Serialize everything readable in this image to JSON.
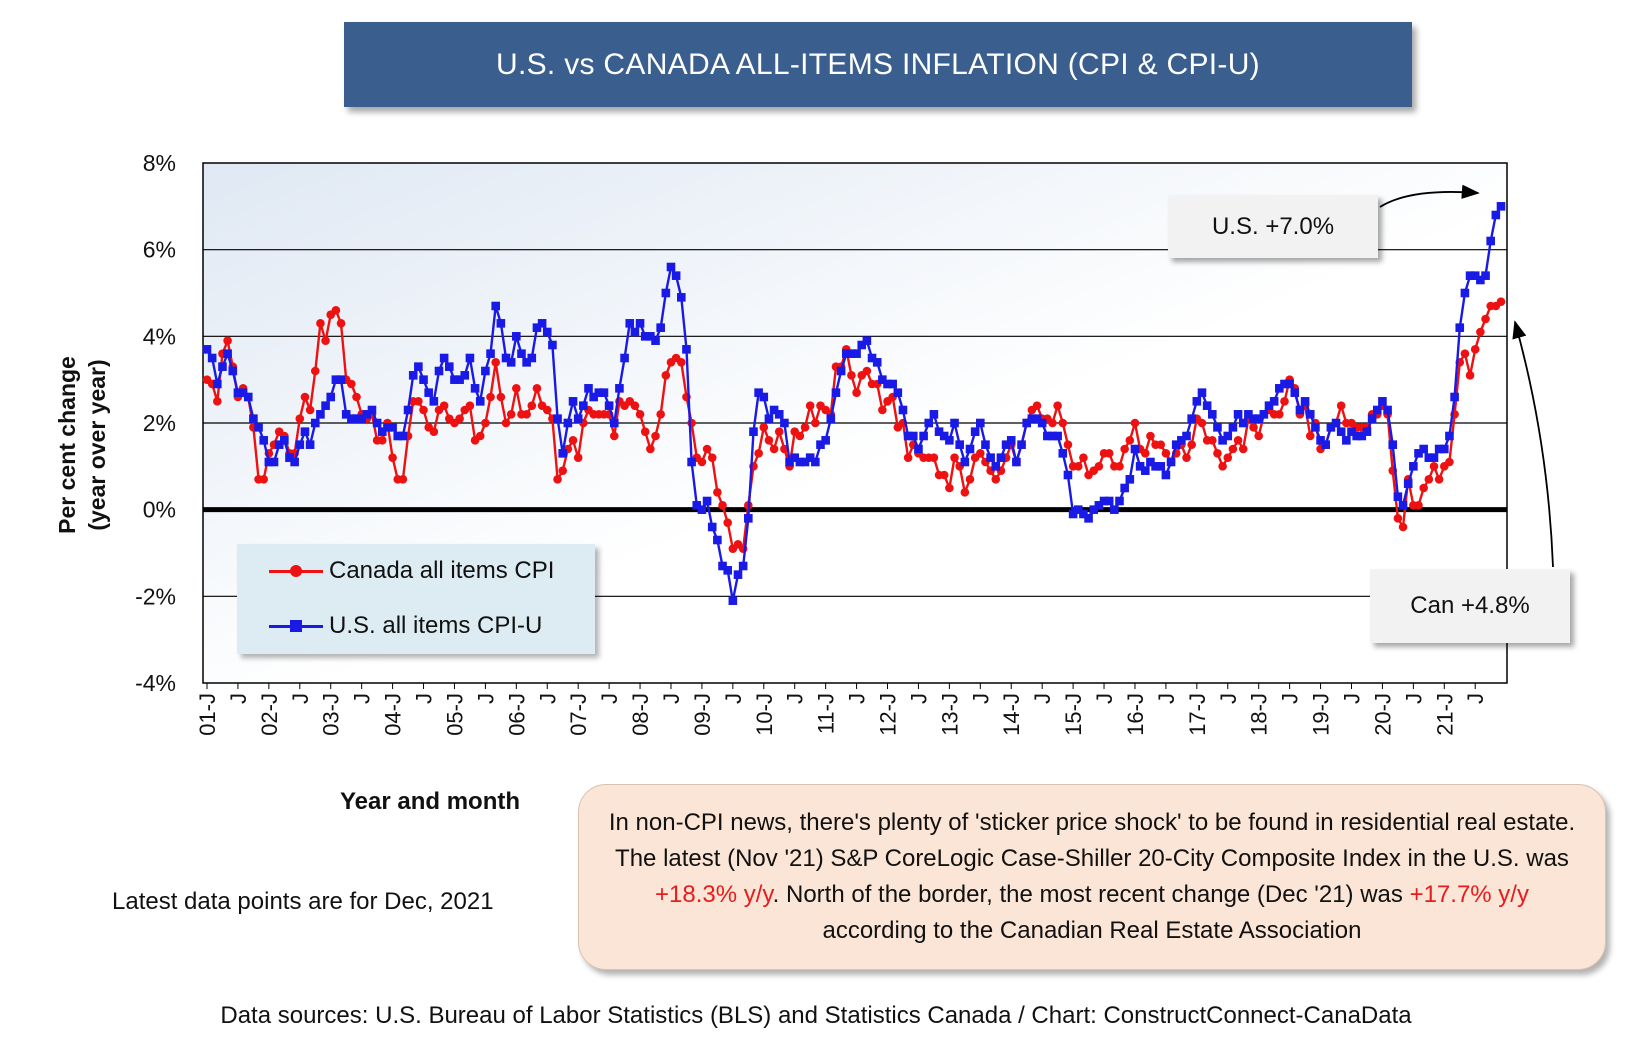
{
  "title": "U.S. vs CANADA ALL-ITEMS INFLATION (CPI & CPI-U)",
  "ylabel": "Per cent change",
  "ylabel_sub": "(year over year)",
  "xlabel": "Year and month",
  "latest_note": "Latest data points are for Dec, 2021",
  "callout_us": "U.S. +7.0%",
  "callout_can": "Can +4.8%",
  "note": {
    "part1": "In non-CPI news, there's plenty of 'sticker price shock' to be found in residential real estate. The latest (Nov '21) S&P CoreLogic Case-Shiller 20-City Composite Index in the U.S. was ",
    "us_value": "+18.3% y/y",
    "part2": ". North of the border, the most recent change (Dec '21) was ",
    "can_value": "+17.7% y/y",
    "part3": " according to the Canadian Real Estate Association"
  },
  "source": "Data sources: U.S. Bureau of Labor Statistics (BLS) and Statistics Canada / Chart: ConstructConnect-CanaData",
  "colors": {
    "canada": "#ee1111",
    "us": "#1a1ae6",
    "title_bg": "#3a5f8f"
  },
  "chart_data": {
    "type": "line",
    "xlabel": "Year and month",
    "ylabel": "Per cent change (year over year)",
    "ylim": [
      -4,
      8
    ],
    "yticks": [
      -4,
      -2,
      0,
      2,
      4,
      6,
      8
    ],
    "ytick_labels": [
      "-4%",
      "-2%",
      "0%",
      "2%",
      "4%",
      "6%",
      "8%"
    ],
    "x_start": "2001-01",
    "x_end": "2021-12",
    "xtick_labels": [
      "01-J",
      "J",
      "02-J",
      "J",
      "03-J",
      "J",
      "04-J",
      "J",
      "05-J",
      "J",
      "06-J",
      "J",
      "07-J",
      "J",
      "08-J",
      "J",
      "09-J",
      "J",
      "10-J",
      "J",
      "11-J",
      "J",
      "12-J",
      "J",
      "13-J",
      "J",
      "14-J",
      "J",
      "15-J",
      "J",
      "16-J",
      "J",
      "17-J",
      "J",
      "18-J",
      "J",
      "19-J",
      "J",
      "20-J",
      "J",
      "21-J",
      "J"
    ],
    "grid": true,
    "legend_position": "bottom-left",
    "series": [
      {
        "name": "Canada all items CPI",
        "values": [
          3.0,
          2.9,
          2.5,
          3.6,
          3.9,
          3.3,
          2.6,
          2.8,
          2.6,
          1.9,
          0.7,
          0.7,
          1.3,
          1.5,
          1.8,
          1.7,
          1.3,
          1.3,
          2.1,
          2.6,
          2.3,
          3.2,
          4.3,
          3.9,
          4.5,
          4.6,
          4.3,
          3.0,
          2.9,
          2.6,
          2.2,
          2.1,
          2.2,
          1.6,
          1.6,
          2.0,
          1.2,
          0.7,
          0.7,
          1.7,
          2.5,
          2.5,
          2.3,
          1.9,
          1.8,
          2.3,
          2.4,
          2.1,
          2.0,
          2.1,
          2.3,
          2.4,
          1.6,
          1.7,
          2.0,
          2.6,
          3.4,
          2.6,
          2.0,
          2.2,
          2.8,
          2.2,
          2.2,
          2.4,
          2.8,
          2.4,
          2.3,
          2.1,
          0.7,
          0.9,
          1.4,
          1.6,
          1.2,
          2.0,
          2.3,
          2.2,
          2.2,
          2.2,
          2.2,
          1.7,
          2.5,
          2.4,
          2.5,
          2.4,
          2.2,
          1.8,
          1.4,
          1.7,
          2.2,
          3.1,
          3.4,
          3.5,
          3.4,
          2.6,
          2.0,
          1.2,
          1.1,
          1.4,
          1.2,
          0.4,
          0.1,
          -0.3,
          -0.9,
          -0.8,
          -0.9,
          0.1,
          1.0,
          1.3,
          1.9,
          1.6,
          1.4,
          1.8,
          1.4,
          1.0,
          1.8,
          1.7,
          1.9,
          2.4,
          2.0,
          2.4,
          2.3,
          2.2,
          3.3,
          3.3,
          3.7,
          3.1,
          2.7,
          3.1,
          3.2,
          2.9,
          2.9,
          2.3,
          2.5,
          2.6,
          1.9,
          2.0,
          1.2,
          1.5,
          1.3,
          1.2,
          1.2,
          1.2,
          0.8,
          0.8,
          0.5,
          1.2,
          1.0,
          0.4,
          0.7,
          1.2,
          1.3,
          1.1,
          0.9,
          0.7,
          0.9,
          1.2,
          1.5,
          1.1,
          1.5,
          2.0,
          2.3,
          2.4,
          2.1,
          2.1,
          2.0,
          2.4,
          2.0,
          1.5,
          1.0,
          1.0,
          1.2,
          0.8,
          0.9,
          1.0,
          1.3,
          1.3,
          1.0,
          1.0,
          1.4,
          1.6,
          2.0,
          1.4,
          1.3,
          1.7,
          1.5,
          1.5,
          1.3,
          1.1,
          1.3,
          1.5,
          1.2,
          1.5,
          2.1,
          2.0,
          1.6,
          1.6,
          1.3,
          1.0,
          1.2,
          1.4,
          1.6,
          1.4,
          2.1,
          1.9,
          1.7,
          2.2,
          2.3,
          2.2,
          2.2,
          2.5,
          3.0,
          2.8,
          2.2,
          2.4,
          1.7,
          2.0,
          1.4,
          1.5,
          1.9,
          2.0,
          2.4,
          2.0,
          2.0,
          1.9,
          1.9,
          1.9,
          2.2,
          2.2,
          2.4,
          2.2,
          0.9,
          -0.2,
          -0.4,
          0.7,
          0.1,
          0.1,
          0.5,
          0.7,
          1.0,
          0.7,
          1.0,
          1.1,
          2.2,
          3.4,
          3.6,
          3.1,
          3.7,
          4.1,
          4.4,
          4.7,
          4.7,
          4.8
        ]
      },
      {
        "name": "U.S. all items CPI-U",
        "values": [
          3.7,
          3.5,
          2.9,
          3.3,
          3.6,
          3.2,
          2.7,
          2.7,
          2.6,
          2.1,
          1.9,
          1.6,
          1.1,
          1.1,
          1.5,
          1.6,
          1.2,
          1.1,
          1.5,
          1.8,
          1.5,
          2.0,
          2.2,
          2.4,
          2.6,
          3.0,
          3.0,
          2.2,
          2.1,
          2.1,
          2.1,
          2.2,
          2.3,
          2.0,
          1.8,
          1.9,
          1.9,
          1.7,
          1.7,
          2.3,
          3.1,
          3.3,
          3.0,
          2.7,
          2.5,
          3.2,
          3.5,
          3.3,
          3.0,
          3.0,
          3.1,
          3.5,
          2.8,
          2.5,
          3.2,
          3.6,
          4.7,
          4.3,
          3.5,
          3.4,
          4.0,
          3.6,
          3.4,
          3.5,
          4.2,
          4.3,
          4.1,
          3.8,
          2.1,
          1.3,
          2.0,
          2.5,
          2.1,
          2.4,
          2.8,
          2.6,
          2.7,
          2.7,
          2.4,
          2.0,
          2.8,
          3.5,
          4.3,
          4.1,
          4.3,
          4.0,
          4.0,
          3.9,
          4.2,
          5.0,
          5.6,
          5.4,
          4.9,
          3.7,
          1.1,
          0.1,
          0.0,
          0.2,
          -0.4,
          -0.7,
          -1.3,
          -1.4,
          -2.1,
          -1.5,
          -1.3,
          -0.2,
          1.8,
          2.7,
          2.6,
          2.1,
          2.3,
          2.2,
          2.0,
          1.1,
          1.2,
          1.1,
          1.1,
          1.2,
          1.1,
          1.5,
          1.6,
          2.1,
          2.7,
          3.2,
          3.6,
          3.6,
          3.6,
          3.8,
          3.9,
          3.5,
          3.4,
          3.0,
          2.9,
          2.9,
          2.7,
          2.3,
          1.7,
          1.7,
          1.4,
          1.7,
          2.0,
          2.2,
          1.8,
          1.7,
          1.6,
          2.0,
          1.5,
          1.1,
          1.4,
          1.8,
          2.0,
          1.5,
          1.2,
          1.0,
          1.2,
          1.5,
          1.6,
          1.1,
          1.5,
          2.0,
          2.1,
          2.1,
          2.0,
          1.7,
          1.7,
          1.7,
          1.3,
          0.8,
          -0.1,
          0.0,
          -0.1,
          -0.2,
          0.0,
          0.1,
          0.2,
          0.2,
          0.0,
          0.2,
          0.5,
          0.7,
          1.4,
          1.0,
          0.9,
          1.1,
          1.0,
          1.0,
          0.8,
          1.1,
          1.5,
          1.6,
          1.7,
          2.1,
          2.5,
          2.7,
          2.4,
          2.2,
          1.9,
          1.6,
          1.7,
          1.9,
          2.2,
          2.0,
          2.2,
          2.1,
          2.1,
          2.2,
          2.4,
          2.5,
          2.8,
          2.9,
          2.9,
          2.7,
          2.3,
          2.5,
          2.2,
          1.9,
          1.6,
          1.5,
          1.9,
          2.0,
          1.8,
          1.6,
          1.8,
          1.7,
          1.7,
          1.8,
          2.1,
          2.3,
          2.5,
          2.3,
          1.5,
          0.3,
          0.1,
          0.6,
          1.0,
          1.3,
          1.4,
          1.2,
          1.2,
          1.4,
          1.4,
          1.7,
          2.6,
          4.2,
          5.0,
          5.4,
          5.4,
          5.3,
          5.4,
          6.2,
          6.8,
          7.0
        ]
      }
    ]
  }
}
